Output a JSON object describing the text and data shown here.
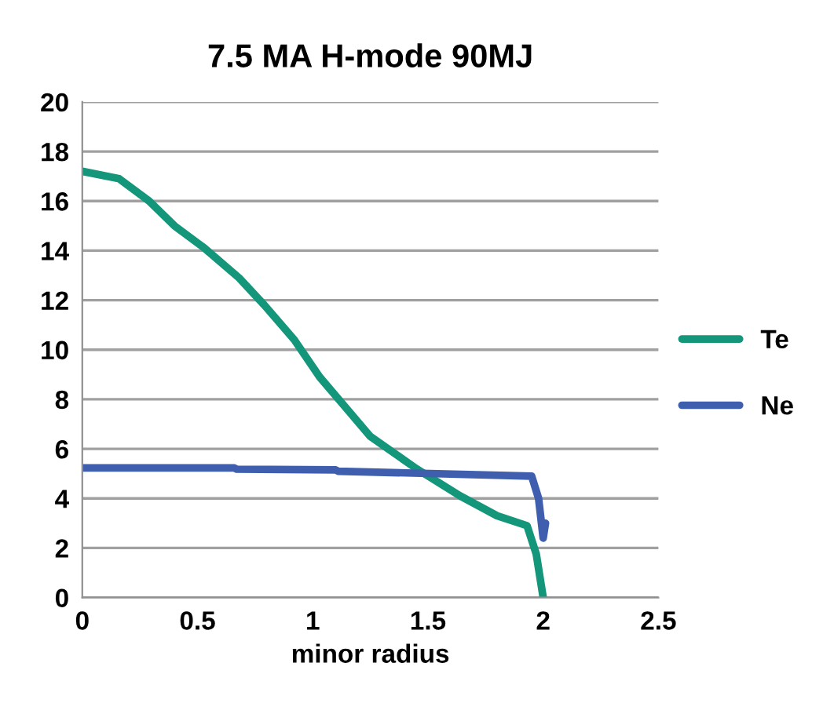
{
  "chart_data": {
    "type": "line",
    "title": "7.5 MA H-mode 90MJ",
    "xlabel": "minor radius",
    "xlim": [
      0,
      2.5
    ],
    "xticks": [
      0,
      0.5,
      1,
      1.5,
      2,
      2.5
    ],
    "ylim": [
      0,
      20
    ],
    "yticks": [
      0,
      2,
      4,
      6,
      8,
      10,
      12,
      14,
      16,
      18,
      20
    ],
    "grid": "y",
    "legend": "right",
    "series": [
      {
        "name": "Te",
        "color": "#14967a",
        "x": [
          0,
          0.16,
          0.29,
          0.4,
          0.53,
          0.68,
          0.79,
          0.92,
          1.03,
          1.14,
          1.25,
          1.45,
          1.64,
          1.8,
          1.93,
          1.97,
          2.0
        ],
        "values": [
          17.2,
          16.9,
          16.0,
          15.0,
          14.1,
          12.9,
          11.8,
          10.4,
          8.9,
          7.7,
          6.5,
          5.2,
          4.1,
          3.3,
          2.9,
          1.75,
          0
        ]
      },
      {
        "name": "Ne",
        "color": "#3f5fae",
        "x": [
          0,
          0.66,
          0.67,
          1.1,
          1.11,
          1.95,
          1.98,
          2.0,
          2.01
        ],
        "values": [
          5.23,
          5.23,
          5.18,
          5.15,
          5.1,
          4.9,
          4.0,
          2.4,
          3.0
        ]
      }
    ]
  }
}
